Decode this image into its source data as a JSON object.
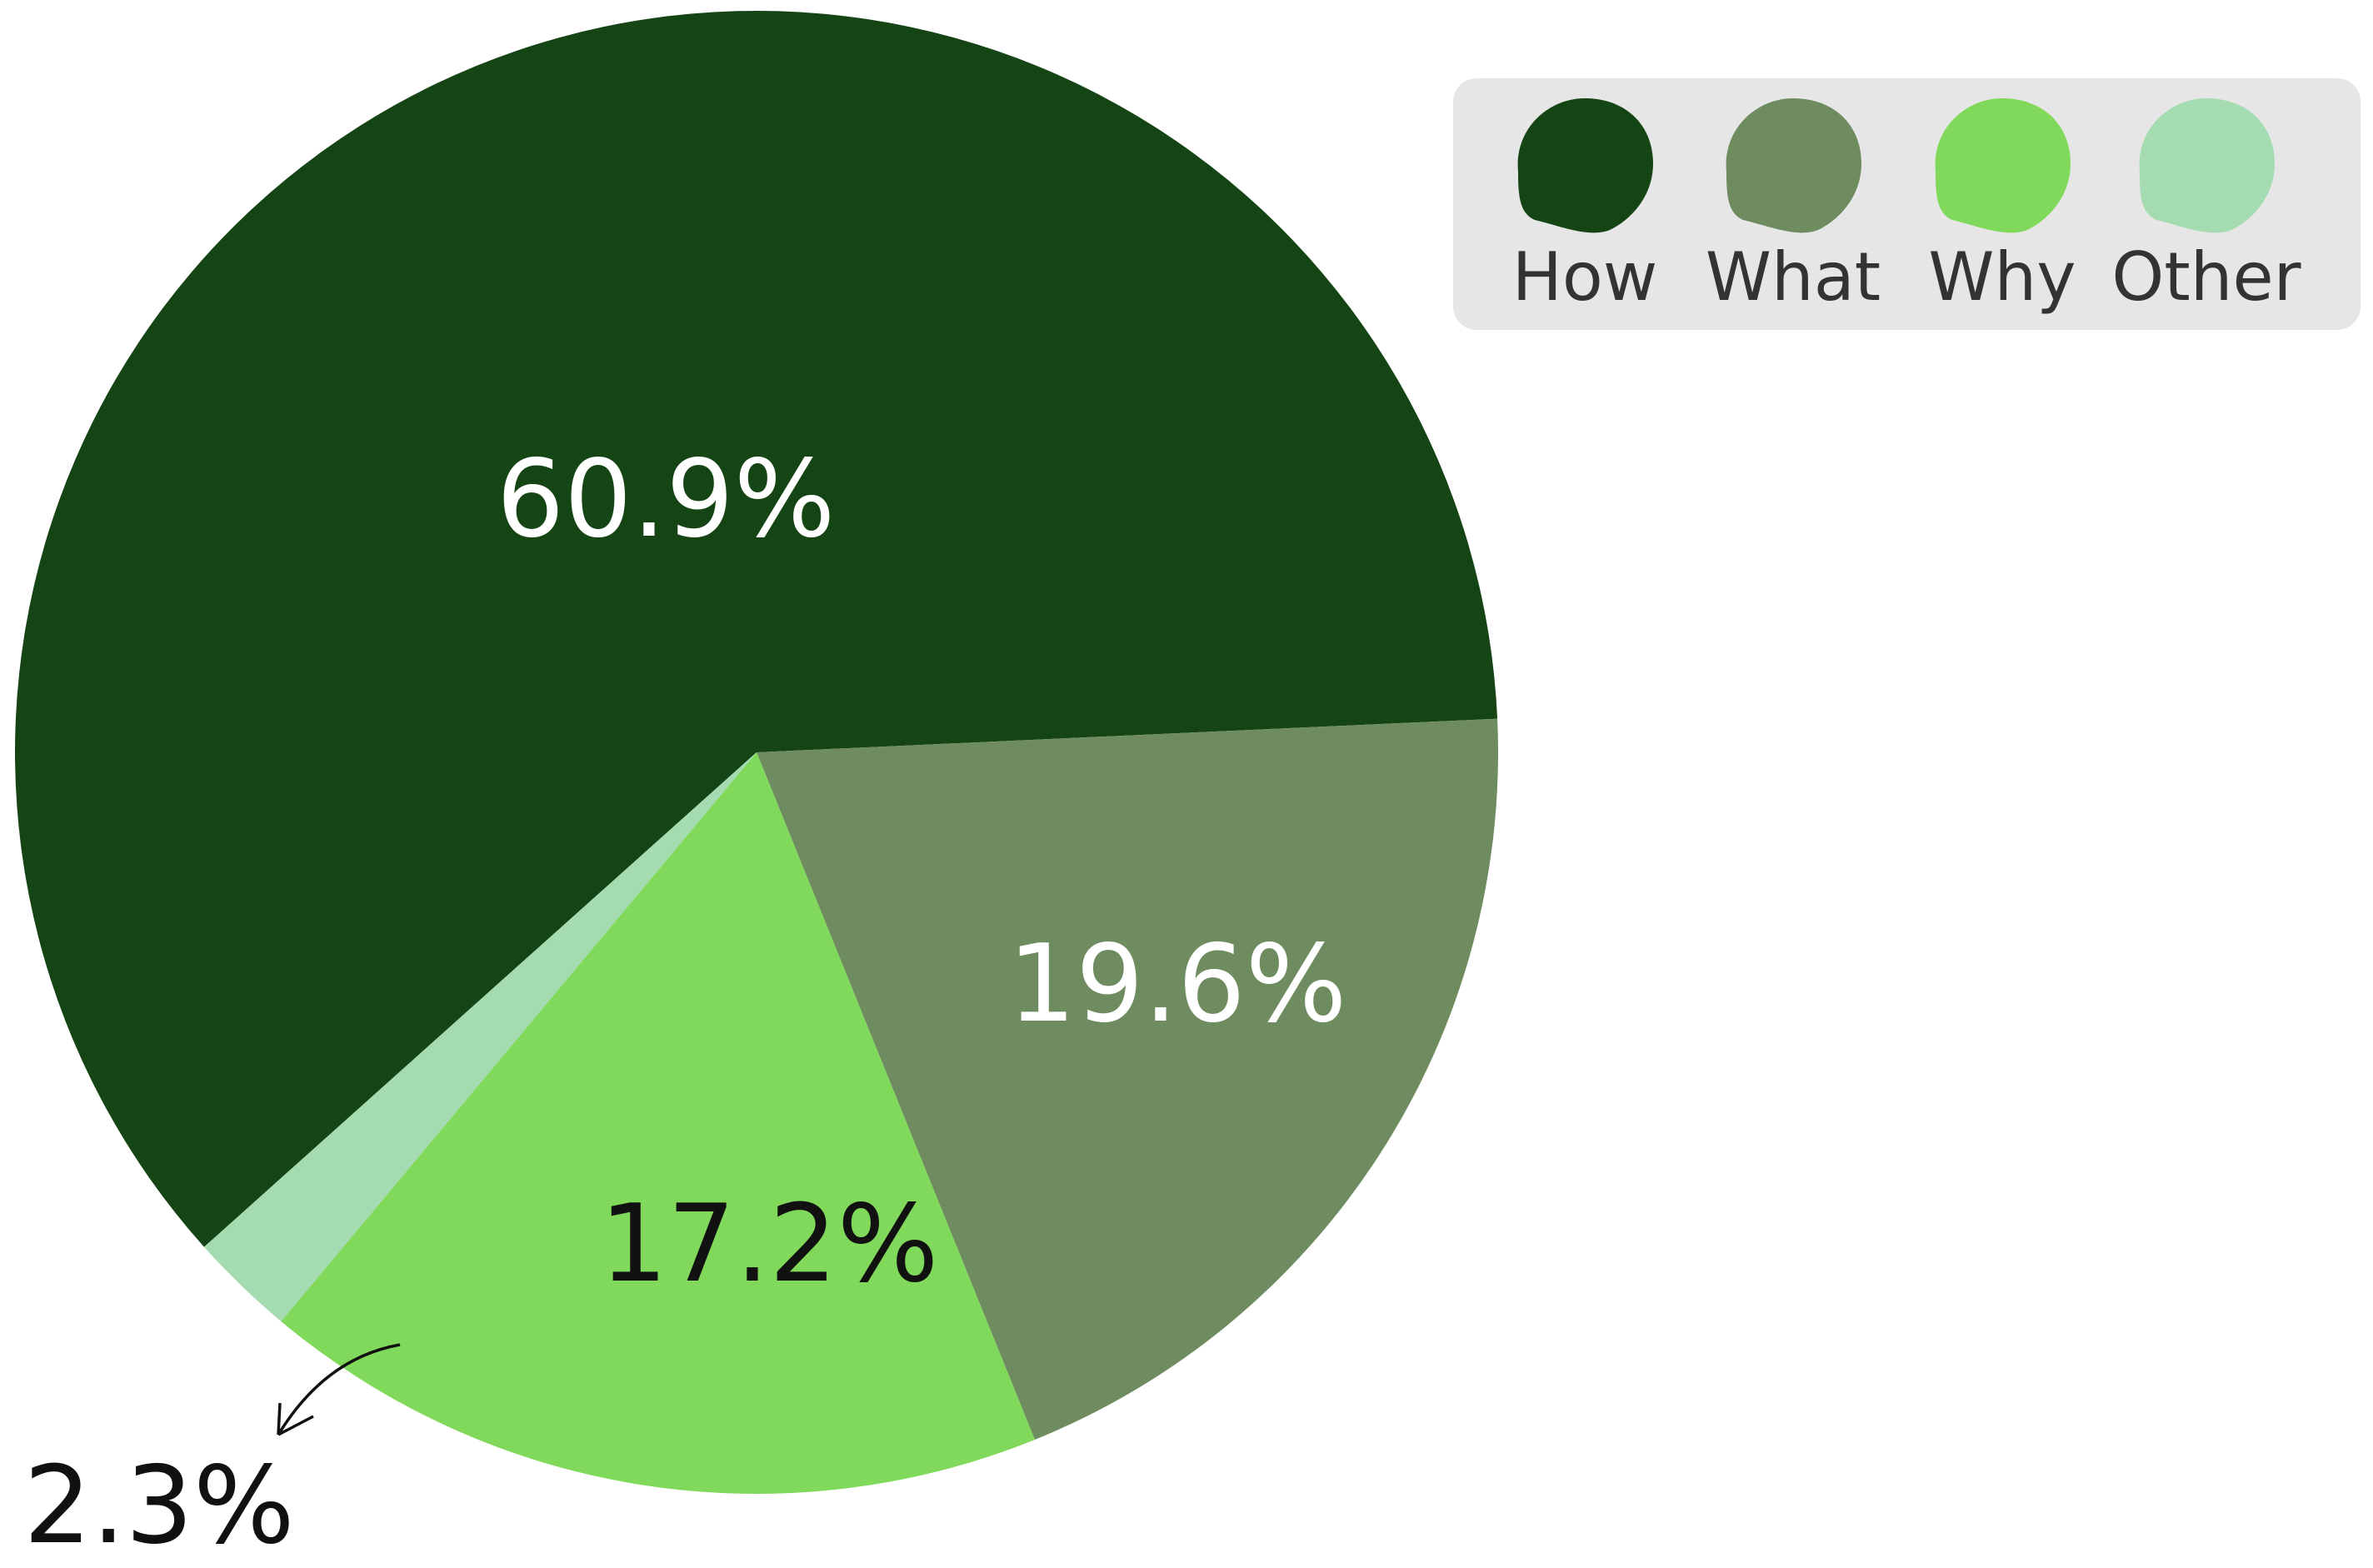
{
  "chart_data": {
    "type": "pie",
    "categories": [
      "How",
      "What",
      "Why",
      "Other"
    ],
    "values": [
      60.9,
      19.6,
      17.2,
      2.3
    ],
    "value_labels": [
      "60.9%",
      "19.6%",
      "17.2%",
      "2.3%"
    ],
    "colors": [
      "#154515",
      "#6f8c60",
      "#80d95a",
      "#a4dbb0"
    ],
    "label_colors": [
      "#ffffff",
      "#ffffff",
      "#111111",
      "#111111"
    ],
    "legend": "upper right"
  }
}
